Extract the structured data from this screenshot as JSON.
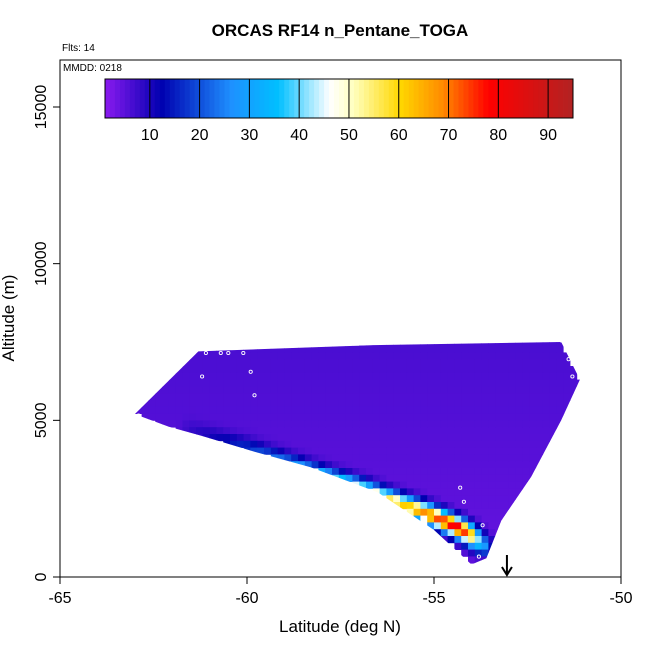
{
  "chart_data": {
    "type": "heatmap",
    "title": "ORCAS RF14 n_Pentane_TOGA",
    "annotations": {
      "flights": "Flts: 14",
      "date": "MMDD: 0218"
    },
    "xlabel": "Latitude (deg N)",
    "ylabel": "Altitude (m)",
    "xlim": [
      -65,
      -50
    ],
    "ylim": [
      0,
      16500
    ],
    "x_ticks": [
      -65,
      -60,
      -55,
      -50
    ],
    "x_tick_labels": [
      "-65",
      "-60",
      "-55",
      "-50"
    ],
    "y_ticks": [
      0,
      5000,
      10000,
      15000
    ],
    "y_tick_labels": [
      "0",
      "5000",
      "10000",
      "15000"
    ],
    "grid": false,
    "colorbar": {
      "position": "top-inside",
      "range": [
        1,
        95
      ],
      "ticks": [
        10,
        20,
        30,
        40,
        50,
        60,
        70,
        80,
        90
      ],
      "tick_labels": [
        "10",
        "20",
        "30",
        "40",
        "50",
        "60",
        "70",
        "80",
        "90"
      ],
      "colors": [
        "#8B1AF0",
        "#0000B0",
        "#1E90FF",
        "#00BFFF",
        "#FFFFFF",
        "#FFFFC0",
        "#FFD700",
        "#FF8C00",
        "#FF0000",
        "#B22222"
      ],
      "stops": [
        0,
        0.12,
        0.27,
        0.37,
        0.48,
        0.53,
        0.63,
        0.72,
        0.82,
        1
      ]
    },
    "field": {
      "envelope": {
        "lat": [
          -63,
          -61.3,
          -56.6,
          -51.6,
          -51.1,
          -51.6,
          -52.4,
          -53.2,
          -53.6,
          -54.0,
          -55.0,
          -56.5,
          -58.3,
          -59.8,
          -61.2,
          -62.1,
          -63
        ],
        "alt": [
          5200,
          7200,
          7400,
          7500,
          6300,
          5000,
          3200,
          1800,
          600,
          400,
          1500,
          2700,
          3500,
          4000,
          4500,
          4800,
          5200
        ]
      },
      "plume": {
        "lat": [
          -61.5,
          -60.7,
          -59.9,
          -59.2,
          -58.5,
          -57.8,
          -57.1,
          -56.5,
          -55.9,
          -55.3,
          -54.8,
          -54.4,
          -54.1,
          -53.9,
          -53.7
        ],
        "alt": [
          4700,
          4380,
          4060,
          3740,
          3430,
          3140,
          2860,
          2590,
          2330,
          2070,
          1820,
          1600,
          1380,
          1180,
          980
        ],
        "value": [
          8,
          12,
          18,
          24,
          32,
          40,
          48,
          54,
          60,
          68,
          75,
          82,
          72,
          48,
          30
        ]
      }
    },
    "markers": {
      "points": [
        {
          "lat": -61.1,
          "alt": 7150
        },
        {
          "lat": -60.7,
          "alt": 7150
        },
        {
          "lat": -60.5,
          "alt": 7150
        },
        {
          "lat": -60.1,
          "alt": 7150
        },
        {
          "lat": -59.9,
          "alt": 6550
        },
        {
          "lat": -61.2,
          "alt": 6400
        },
        {
          "lat": -59.8,
          "alt": 5800
        },
        {
          "lat": -62.9,
          "alt": 5150
        },
        {
          "lat": -51.6,
          "alt": 7550
        },
        {
          "lat": -51.4,
          "alt": 6950
        },
        {
          "lat": -51.3,
          "alt": 6400
        },
        {
          "lat": -54.3,
          "alt": 2850
        },
        {
          "lat": -54.2,
          "alt": 2400
        },
        {
          "lat": -53.7,
          "alt": 1650
        },
        {
          "lat": -53.3,
          "alt": 750
        },
        {
          "lat": -53.6,
          "alt": 450
        },
        {
          "lat": -53.5,
          "alt": 300
        },
        {
          "lat": -53.8,
          "alt": 650
        }
      ],
      "arrow_lat": -53.05
    }
  }
}
